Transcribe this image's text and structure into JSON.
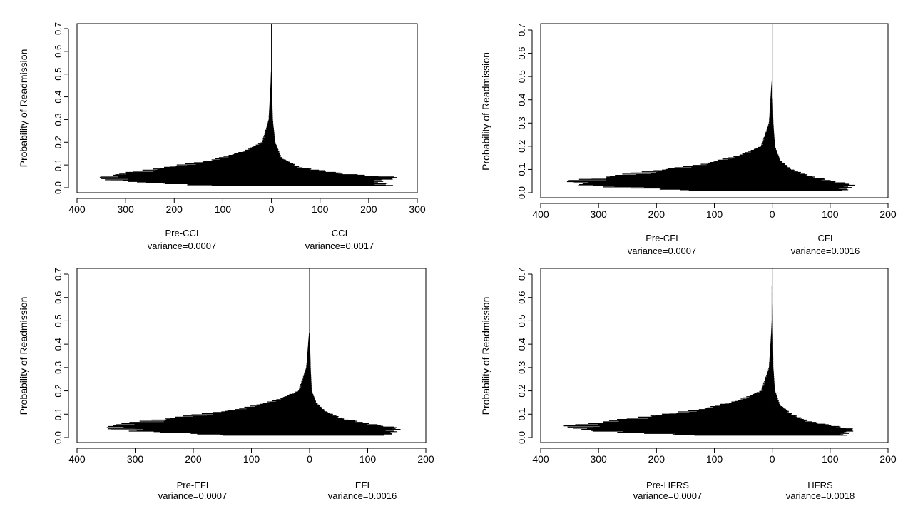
{
  "chart_data": [
    {
      "type": "bar",
      "orientation": "horizontal",
      "ylabel": "Probability of Readmission",
      "ylim": [
        0,
        0.7
      ],
      "yticks": [
        "0.0",
        "0.1",
        "0.2",
        "0.3",
        "0.4",
        "0.5",
        "0.6",
        "0.7"
      ],
      "xlim": [
        -400,
        300
      ],
      "xticks": [
        "400",
        "300",
        "200",
        "100",
        "0",
        "100",
        "200",
        "300"
      ],
      "left": {
        "name": "Pre-CCI",
        "variance_label": "variance=0.0007"
      },
      "right": {
        "name": "CCI",
        "variance_label": "variance=0.0017"
      },
      "left_profile": [
        [
          0.01,
          150
        ],
        [
          0.03,
          340
        ],
        [
          0.05,
          360
        ],
        [
          0.08,
          260
        ],
        [
          0.12,
          130
        ],
        [
          0.16,
          60
        ],
        [
          0.2,
          20
        ],
        [
          0.3,
          6
        ],
        [
          0.45,
          2
        ],
        [
          0.51,
          1
        ]
      ],
      "right_profile": [
        [
          0.01,
          250
        ],
        [
          0.03,
          230
        ],
        [
          0.045,
          270
        ],
        [
          0.06,
          160
        ],
        [
          0.09,
          60
        ],
        [
          0.13,
          22
        ],
        [
          0.2,
          8
        ],
        [
          0.3,
          3
        ],
        [
          0.45,
          1
        ],
        [
          0.5,
          0
        ]
      ]
    },
    {
      "type": "bar",
      "orientation": "horizontal",
      "ylabel": "Probability of Readmission",
      "ylim": [
        0,
        0.7
      ],
      "yticks": [
        "0.0",
        "0.1",
        "0.2",
        "0.3",
        "0.4",
        "0.5",
        "0.6",
        "0.7"
      ],
      "xlim": [
        -400,
        200
      ],
      "xticks": [
        "400",
        "300",
        "200",
        "100",
        "0",
        "100",
        "200"
      ],
      "left": {
        "name": "Pre-CFI",
        "variance_label": "variance=0.0007"
      },
      "right": {
        "name": "CFI",
        "variance_label": "variance=0.0016"
      },
      "left_profile": [
        [
          0.01,
          150
        ],
        [
          0.03,
          340
        ],
        [
          0.05,
          360
        ],
        [
          0.08,
          260
        ],
        [
          0.12,
          130
        ],
        [
          0.16,
          60
        ],
        [
          0.2,
          20
        ],
        [
          0.3,
          6
        ],
        [
          0.45,
          2
        ],
        [
          0.48,
          1
        ]
      ],
      "right_profile": [
        [
          0.01,
          130
        ],
        [
          0.035,
          145
        ],
        [
          0.05,
          110
        ],
        [
          0.07,
          70
        ],
        [
          0.1,
          35
        ],
        [
          0.14,
          14
        ],
        [
          0.2,
          5
        ],
        [
          0.3,
          2
        ],
        [
          0.4,
          1
        ],
        [
          0.42,
          0
        ]
      ]
    },
    {
      "type": "bar",
      "orientation": "horizontal",
      "ylabel": "Probability of Readmission",
      "ylim": [
        0,
        0.7
      ],
      "yticks": [
        "0.0",
        "0.1",
        "0.2",
        "0.3",
        "0.4",
        "0.5",
        "0.6",
        "0.7"
      ],
      "xlim": [
        -400,
        200
      ],
      "xticks": [
        "400",
        "300",
        "200",
        "100",
        "0",
        "100",
        "200"
      ],
      "left": {
        "name": "Pre-EFI",
        "variance_label": "variance=0.0007"
      },
      "right": {
        "name": "EFI",
        "variance_label": "variance=0.0016"
      },
      "left_profile": [
        [
          0.01,
          150
        ],
        [
          0.03,
          340
        ],
        [
          0.05,
          360
        ],
        [
          0.08,
          260
        ],
        [
          0.12,
          130
        ],
        [
          0.16,
          60
        ],
        [
          0.2,
          20
        ],
        [
          0.3,
          6
        ],
        [
          0.42,
          2
        ],
        [
          0.45,
          1
        ]
      ],
      "right_profile": [
        [
          0.01,
          140
        ],
        [
          0.04,
          160
        ],
        [
          0.055,
          120
        ],
        [
          0.08,
          60
        ],
        [
          0.11,
          30
        ],
        [
          0.15,
          12
        ],
        [
          0.2,
          4
        ],
        [
          0.3,
          2
        ],
        [
          0.4,
          1
        ],
        [
          0.43,
          0
        ]
      ]
    },
    {
      "type": "bar",
      "orientation": "horizontal",
      "ylabel": "Probability of Readmission",
      "ylim": [
        0,
        0.7
      ],
      "yticks": [
        "0.0",
        "0.1",
        "0.2",
        "0.3",
        "0.4",
        "0.5",
        "0.6",
        "0.7"
      ],
      "xlim": [
        -400,
        200
      ],
      "xticks": [
        "400",
        "300",
        "200",
        "100",
        "0",
        "100",
        "200"
      ],
      "left": {
        "name": "Pre-HFRS",
        "variance_label": "variance=0.0007"
      },
      "right": {
        "name": "HFRS",
        "variance_label": "variance=0.0018"
      },
      "left_profile": [
        [
          0.01,
          150
        ],
        [
          0.03,
          340
        ],
        [
          0.05,
          360
        ],
        [
          0.08,
          260
        ],
        [
          0.12,
          130
        ],
        [
          0.16,
          60
        ],
        [
          0.2,
          20
        ],
        [
          0.3,
          6
        ],
        [
          0.45,
          2
        ],
        [
          0.5,
          1
        ]
      ],
      "right_profile": [
        [
          0.01,
          130
        ],
        [
          0.035,
          145
        ],
        [
          0.05,
          110
        ],
        [
          0.07,
          65
        ],
        [
          0.1,
          35
        ],
        [
          0.14,
          14
        ],
        [
          0.2,
          5
        ],
        [
          0.3,
          2
        ],
        [
          0.5,
          1
        ],
        [
          0.65,
          0
        ]
      ]
    }
  ]
}
